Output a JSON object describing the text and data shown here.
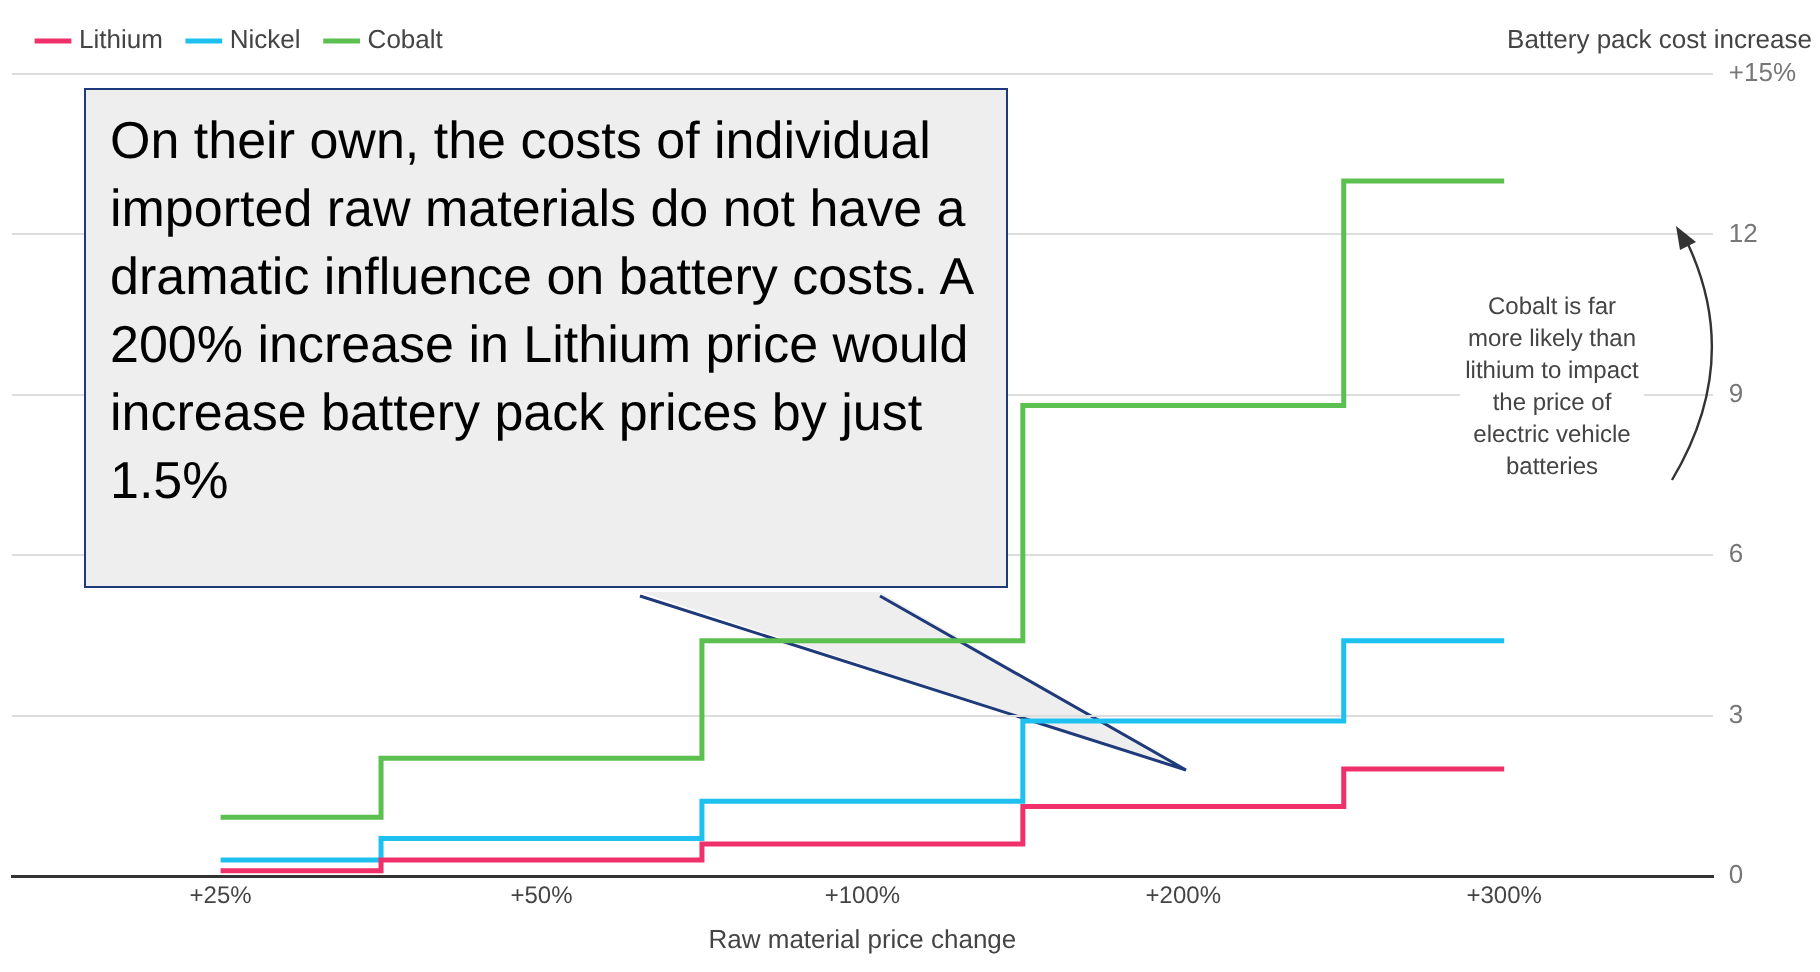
{
  "chart_data": {
    "type": "step",
    "ylabel": "Battery pack cost increase",
    "xlabel": "Raw material price change",
    "categories": [
      "+25%",
      "+50%",
      "+100%",
      "+200%",
      "+300%"
    ],
    "series": [
      {
        "name": "Lithium",
        "color": "#f0306a",
        "values": [
          0.1,
          0.3,
          0.6,
          1.3,
          2.0
        ]
      },
      {
        "name": "Nickel",
        "color": "#1ec0f0",
        "values": [
          0.3,
          0.7,
          1.4,
          2.9,
          4.4
        ]
      },
      {
        "name": "Cobalt",
        "color": "#5cc050",
        "values": [
          1.1,
          2.2,
          4.4,
          8.8,
          13.0
        ]
      }
    ],
    "ylim": [
      0,
      15
    ],
    "yticks": [
      0,
      3,
      6,
      9,
      12,
      {
        "value": 15,
        "label": "+15%"
      }
    ],
    "grid": "y",
    "legend": "top left",
    "annotations": [
      "On their own, the costs of individual imported raw materials do not have a dramatic influence on battery costs.  A 200% increase in Lithium price would increase battery pack prices by just 1.5%",
      "Cobalt is far more likely than lithium to impact the price of electric vehicle batteries"
    ]
  }
}
